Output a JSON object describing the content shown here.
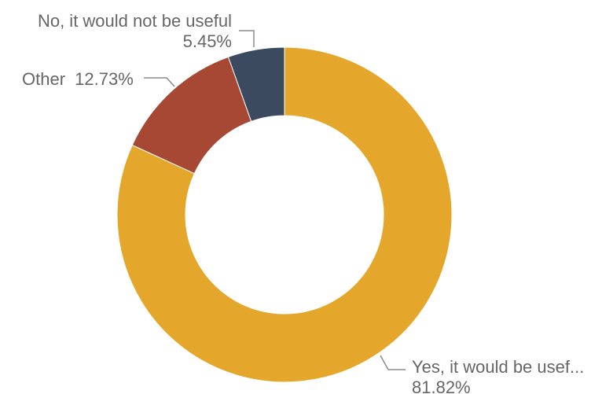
{
  "chart_data": {
    "type": "pie",
    "donut": true,
    "slices": [
      {
        "label": "Yes, it would be usef...",
        "value": 81.82,
        "value_text": "81.82%",
        "color": "#E4A72C"
      },
      {
        "label": "Other",
        "value": 12.73,
        "value_text": "12.73%",
        "color": "#A74834"
      },
      {
        "label": "No, it would not be useful",
        "value": 5.45,
        "value_text": "5.45%",
        "color": "#3B4A5E"
      }
    ]
  }
}
